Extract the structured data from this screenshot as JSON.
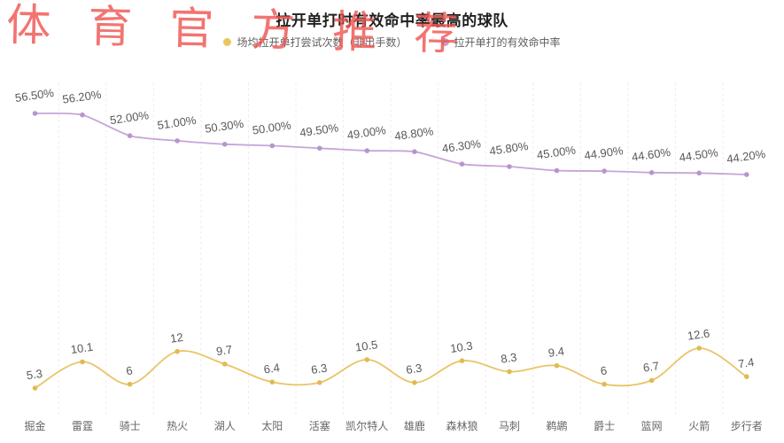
{
  "watermark": {
    "text": "体育官方推荐",
    "color": "#ef5652"
  },
  "title": "拉开单打时有效命中率最高的球队",
  "legend": [
    {
      "label": "场均拉开单打尝试次数（非出手数）",
      "color": "#e9c75f"
    },
    {
      "label": "拉开单打的有效命中率",
      "color": "#c3a2d6"
    }
  ],
  "colors": {
    "gridline": "#f4e8f2",
    "data_label": "#595959",
    "axis_label": "#666666",
    "attempts_line": "#e8c566",
    "attempts_marker": "#e2b954",
    "efg_line": "#c6a5d8",
    "efg_marker": "#b795cd"
  },
  "chart_data": {
    "type": "line",
    "title": "拉开单打时有效命中率最高的球队",
    "categories": [
      "掘金",
      "雷霆",
      "骑士",
      "热火",
      "湖人",
      "太阳",
      "活塞",
      "凯尔特人",
      "雄鹿",
      "森林狼",
      "马刺",
      "鹈鹕",
      "爵士",
      "篮网",
      "火箭",
      "步行者"
    ],
    "series": [
      {
        "name": "场均拉开单打尝试次数（非出手数）",
        "color": "#e8c566",
        "marker_color": "#e2b954",
        "values": [
          5.3,
          10.1,
          6,
          12,
          9.7,
          6.4,
          6.3,
          10.5,
          6.3,
          10.3,
          8.3,
          9.4,
          6,
          6.7,
          12.6,
          7.4
        ],
        "labels": [
          "5.3",
          "10.1",
          "6",
          "12",
          "9.7",
          "6.4",
          "6.3",
          "10.5",
          "6.3",
          "10.3",
          "8.3",
          "9.4",
          "6",
          "6.7",
          "12.6",
          "7.4"
        ]
      },
      {
        "name": "拉开单打的有效命中率",
        "color": "#c6a5d8",
        "marker_color": "#b795cd",
        "values": [
          56.5,
          56.2,
          52.0,
          51.0,
          50.3,
          50.0,
          49.5,
          49.0,
          48.8,
          46.3,
          45.8,
          45.0,
          44.9,
          44.6,
          44.5,
          44.2
        ],
        "labels": [
          "56.50%",
          "56.20%",
          "52.00%",
          "51.00%",
          "50.30%",
          "50.00%",
          "49.50%",
          "49.00%",
          "48.80%",
          "46.30%",
          "45.80%",
          "45.00%",
          "44.90%",
          "44.60%",
          "44.50%",
          "44.20%"
        ]
      }
    ],
    "xlabel": "",
    "ylabel": "",
    "grid": "vertical-dashed",
    "legend_position": "top",
    "data_labels_rotation_deg": -8
  }
}
